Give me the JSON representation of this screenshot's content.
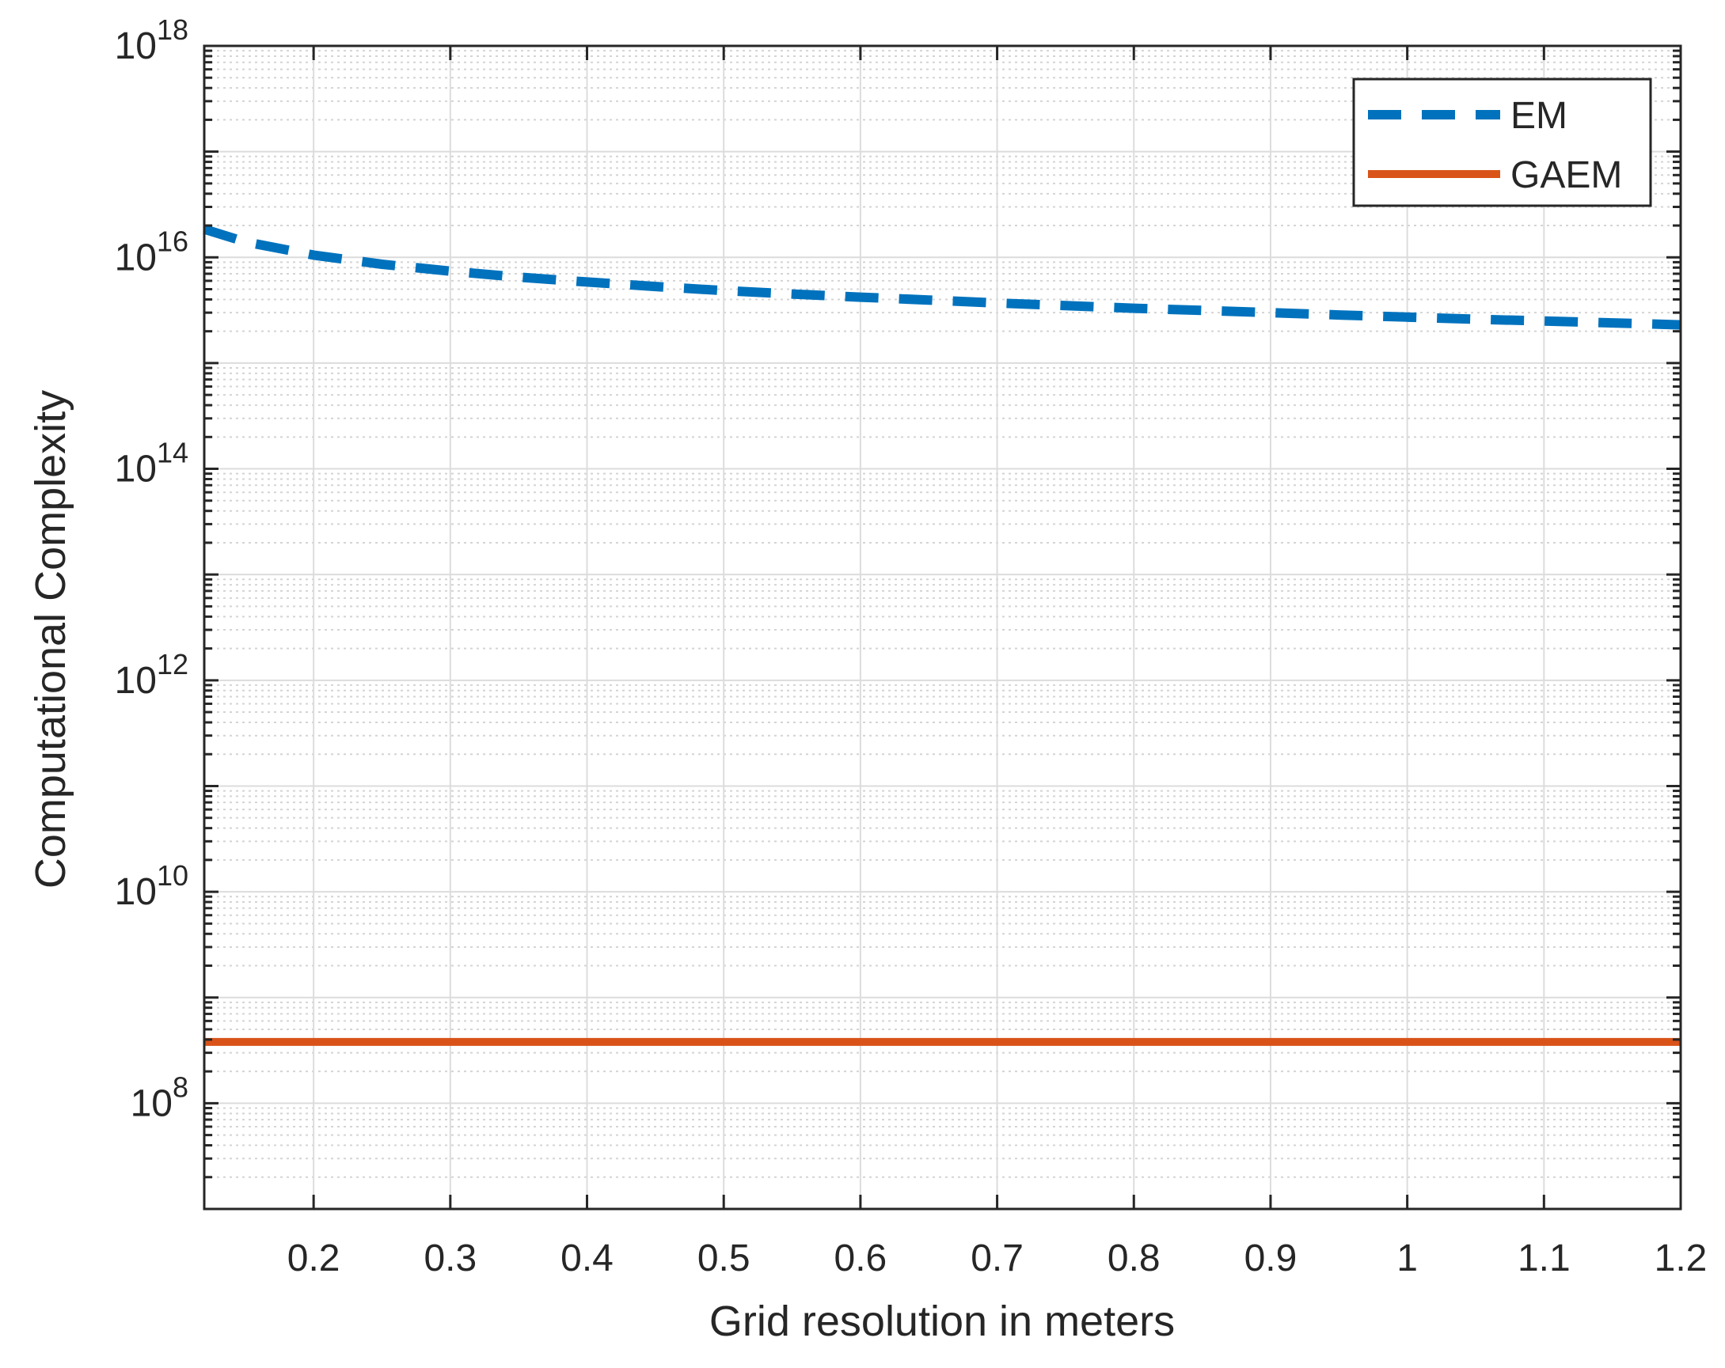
{
  "chart_data": {
    "type": "line",
    "title": "",
    "xlabel": "Grid resolution in meters",
    "ylabel": "Computational Complexity",
    "xlim": [
      0.12,
      1.2
    ],
    "ylim": [
      10000000.0,
      1e+18
    ],
    "yscale": "log",
    "grid": true,
    "minor_grid": true,
    "legend_position": "top-right",
    "x_ticks": [
      0.2,
      0.3,
      0.4,
      0.5,
      0.6,
      0.7,
      0.8,
      0.9,
      1,
      1.1,
      1.2
    ],
    "x_tick_labels": [
      "0.2",
      "0.3",
      "0.4",
      "0.5",
      "0.6",
      "0.7",
      "0.8",
      "0.9",
      "1",
      "1.1",
      "1.2"
    ],
    "y_tick_exponents": [
      8,
      10,
      12,
      14,
      16,
      18
    ],
    "y_tick_base": "10",
    "series": [
      {
        "name": "EM",
        "color": "#0072BD",
        "style": "dashed",
        "x": [
          0.12,
          0.15,
          0.2,
          0.25,
          0.3,
          0.35,
          0.4,
          0.45,
          0.5,
          0.55,
          0.6,
          0.65,
          0.7,
          0.75,
          0.8,
          0.85,
          0.9,
          0.95,
          1.0,
          1.05,
          1.1,
          1.15,
          1.2
        ],
        "y": [
          1.85e+16,
          1.4e+16,
          1.05e+16,
          8600000000000000.0,
          7400000000000000.0,
          6500000000000000.0,
          5850000000000000.0,
          5300000000000000.0,
          4850000000000000.0,
          4500000000000000.0,
          4200000000000000.0,
          3950000000000000.0,
          3700000000000000.0,
          3500000000000000.0,
          3300000000000000.0,
          3150000000000000.0,
          3000000000000000.0,
          2850000000000000.0,
          2720000000000000.0,
          2600000000000000.0,
          2500000000000000.0,
          2400000000000000.0,
          2300000000000000.0
        ]
      },
      {
        "name": "GAEM",
        "color": "#D95319",
        "style": "solid",
        "x": [
          0.12,
          1.2
        ],
        "y": [
          380000000.0,
          380000000.0
        ]
      }
    ]
  }
}
